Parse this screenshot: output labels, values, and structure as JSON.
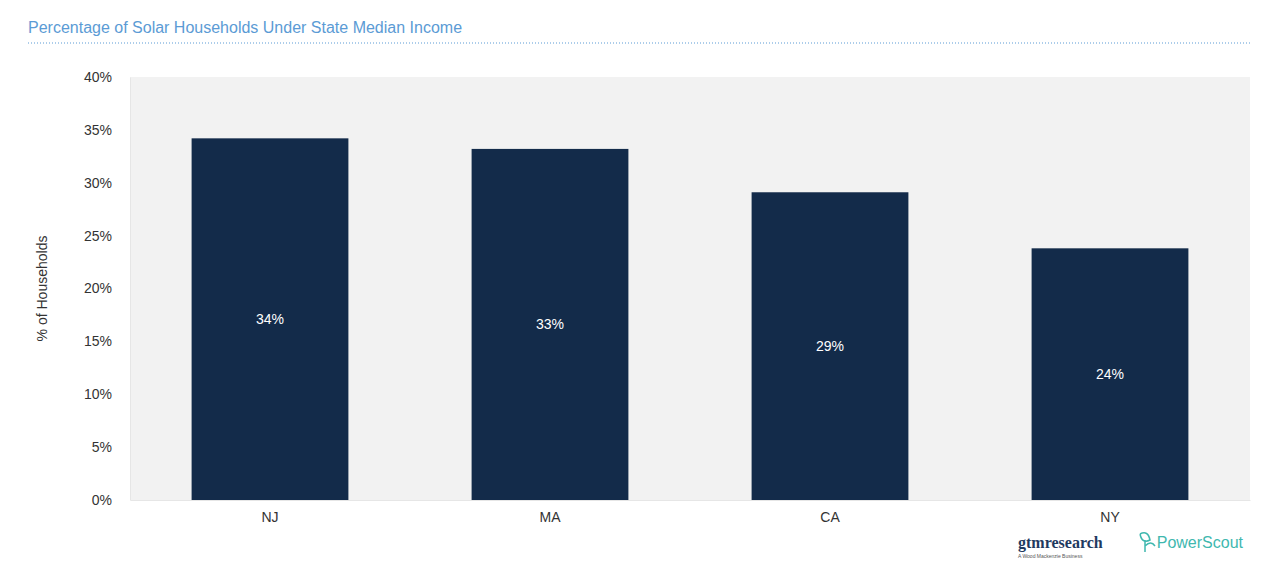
{
  "chart_data": {
    "type": "bar",
    "title": "Percentage of Solar Households Under State Median Income",
    "y_label": "% of Households",
    "categories": [
      "NJ",
      "MA",
      "CA",
      "NY"
    ],
    "values": [
      34.2,
      33.2,
      29.1,
      23.8
    ],
    "value_labels": [
      "34%",
      "33%",
      "29%",
      "24%"
    ],
    "color": "#132b4a",
    "ylim": [
      0,
      40
    ],
    "yticks": [
      {
        "value": 0,
        "label": "0%"
      },
      {
        "value": 5,
        "label": "5%"
      },
      {
        "value": 10,
        "label": "10%"
      },
      {
        "value": 15,
        "label": "15%"
      },
      {
        "value": 20,
        "label": "20%"
      },
      {
        "value": 25,
        "label": "25%"
      },
      {
        "value": 30,
        "label": "30%"
      },
      {
        "value": 35,
        "label": "35%"
      },
      {
        "value": 40,
        "label": "40%"
      }
    ],
    "grid": false,
    "data_labels": true,
    "annotations": [
      "gtmresearch",
      "A Wood Mackenzie Business",
      "PowerScout"
    ]
  }
}
